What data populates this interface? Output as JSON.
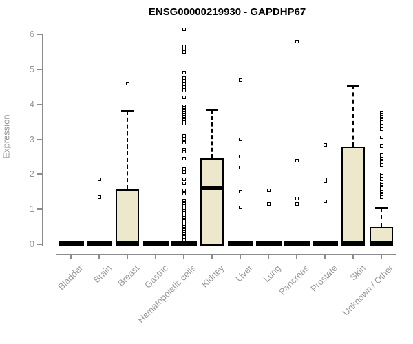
{
  "title": "ENSG00000219930 - GAPDHP67",
  "y_axis": {
    "label": "Expression"
  },
  "chart_data": {
    "type": "boxplot",
    "title": "ENSG00000219930 - GAPDHP67",
    "xlabel": "",
    "ylabel": "Expression",
    "ylim": [
      0,
      6.2
    ],
    "yticks": [
      0,
      1,
      2,
      3,
      4,
      5,
      6
    ],
    "grid": false,
    "legend": "none",
    "categories": [
      "Bladder",
      "Brain",
      "Breast",
      "Gastric",
      "Hematopoietic cells",
      "Kidney",
      "Liver",
      "Lung",
      "Pancreas",
      "Prostate",
      "Skin",
      "Unknown / Other"
    ],
    "series": [
      {
        "name": "Bladder",
        "q1": 0,
        "median": 0,
        "q3": 0,
        "whisker_low": 0,
        "whisker_high": 0,
        "outliers": []
      },
      {
        "name": "Brain",
        "q1": 0,
        "median": 0,
        "q3": 0,
        "whisker_low": 0,
        "whisker_high": 0,
        "outliers": [
          1.85,
          1.35
        ]
      },
      {
        "name": "Breast",
        "q1": 0,
        "median": 0,
        "q3": 1.58,
        "whisker_low": 0,
        "whisker_high": 3.82,
        "outliers": [
          4.6
        ]
      },
      {
        "name": "Gastric",
        "q1": 0,
        "median": 0,
        "q3": 0,
        "whisker_low": 0,
        "whisker_high": 0,
        "outliers": []
      },
      {
        "name": "Hematopoietic cells",
        "q1": 0,
        "median": 0,
        "q3": 0,
        "whisker_low": 0,
        "whisker_high": 0,
        "outliers": [
          6.15,
          5.65,
          5.6,
          5.5,
          4.9,
          4.75,
          4.65,
          4.6,
          4.5,
          4.4,
          4.2,
          3.95,
          3.9,
          3.85,
          3.8,
          3.75,
          3.7,
          3.65,
          3.6,
          3.55,
          3.5,
          3.45,
          3.1,
          3.0,
          2.9,
          2.7,
          2.65,
          2.45,
          2.15,
          2.05,
          1.85,
          1.75,
          1.55,
          1.45,
          1.25,
          1.2,
          1.15,
          1.1,
          1.05,
          1.0,
          0.95,
          0.9,
          0.85,
          0.8,
          0.75,
          0.7,
          0.65,
          0.6,
          0.55,
          0.5,
          0.45,
          0.4,
          0.35,
          0.3,
          0.25,
          0.2,
          0.12
        ]
      },
      {
        "name": "Kidney",
        "q1": 0,
        "median": 1.6,
        "q3": 2.45,
        "whisker_low": 0,
        "whisker_high": 3.85,
        "outliers": []
      },
      {
        "name": "Liver",
        "q1": 0,
        "median": 0,
        "q3": 0,
        "whisker_low": 0,
        "whisker_high": 0,
        "outliers": [
          4.7,
          3.0,
          2.5,
          2.2,
          1.5,
          1.05
        ]
      },
      {
        "name": "Lung",
        "q1": 0,
        "median": 0,
        "q3": 0,
        "whisker_low": 0,
        "whisker_high": 0,
        "outliers": [
          1.55,
          1.15
        ]
      },
      {
        "name": "Pancreas",
        "q1": 0,
        "median": 0,
        "q3": 0,
        "whisker_low": 0,
        "whisker_high": 0,
        "outliers": [
          5.8,
          2.4,
          1.3,
          1.15
        ]
      },
      {
        "name": "Prostate",
        "q1": 0,
        "median": 0,
        "q3": 0,
        "whisker_low": 0,
        "whisker_high": 0,
        "outliers": [
          2.85,
          1.85,
          1.8,
          1.22
        ]
      },
      {
        "name": "Skin",
        "q1": 0,
        "median": 0,
        "q3": 2.8,
        "whisker_low": 0,
        "whisker_high": 4.55,
        "outliers": []
      },
      {
        "name": "Unknown / Other",
        "q1": 0,
        "median": 0,
        "q3": 0.5,
        "whisker_low": 0,
        "whisker_high": 1.05,
        "outliers": [
          3.75,
          3.7,
          3.65,
          3.6,
          3.55,
          3.5,
          3.45,
          3.4,
          3.3,
          3.05,
          2.8,
          2.55,
          2.5,
          2.45,
          2.4,
          2.35,
          2.25,
          2.0,
          1.95,
          1.85,
          1.75,
          1.7,
          1.65,
          1.6,
          1.55,
          1.5,
          1.45,
          1.4,
          1.35
        ]
      }
    ],
    "colors": {
      "box_fill": "#EDE8CC",
      "box_border": "#000000",
      "median": "#000000",
      "outlier": "#000000",
      "axis_line": "#8C8C8C",
      "tick_label": "#979797",
      "title": "#000000",
      "background": "#FFFFFF"
    }
  }
}
